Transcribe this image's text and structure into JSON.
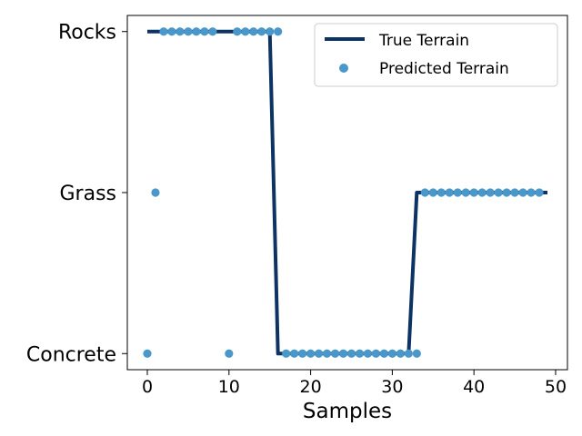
{
  "chart_data": {
    "type": "line",
    "title": "",
    "xlabel": "Samples",
    "ylabel": "",
    "xlim": [
      -2.45,
      51.45
    ],
    "ylim": [
      -0.1,
      2.1
    ],
    "x_ticks": [
      0,
      10,
      20,
      30,
      40,
      50
    ],
    "y_categories": [
      "Concrete",
      "Grass",
      "Rocks"
    ],
    "grid": false,
    "legend_position": "top-right",
    "series": [
      {
        "name": "True Terrain",
        "kind": "line",
        "color": "#0d3264",
        "x": [
          0,
          1,
          2,
          3,
          4,
          5,
          6,
          7,
          8,
          9,
          10,
          11,
          12,
          13,
          14,
          15,
          16,
          17,
          18,
          19,
          20,
          21,
          22,
          23,
          24,
          25,
          26,
          27,
          28,
          29,
          30,
          31,
          32,
          33,
          34,
          35,
          36,
          37,
          38,
          39,
          40,
          41,
          42,
          43,
          44,
          45,
          46,
          47,
          48,
          49
        ],
        "y": [
          2,
          2,
          2,
          2,
          2,
          2,
          2,
          2,
          2,
          2,
          2,
          2,
          2,
          2,
          2,
          2,
          0,
          0,
          0,
          0,
          0,
          0,
          0,
          0,
          0,
          0,
          0,
          0,
          0,
          0,
          0,
          0,
          0,
          1,
          1,
          1,
          1,
          1,
          1,
          1,
          1,
          1,
          1,
          1,
          1,
          1,
          1,
          1,
          1,
          1
        ]
      },
      {
        "name": "Predicted Terrain",
        "kind": "scatter",
        "color": "#4a98c9",
        "x": [
          0,
          1,
          2,
          3,
          4,
          5,
          6,
          7,
          8,
          10,
          11,
          12,
          13,
          14,
          15,
          16,
          17,
          18,
          19,
          20,
          21,
          22,
          23,
          24,
          25,
          26,
          27,
          28,
          29,
          30,
          31,
          32,
          33,
          34,
          35,
          36,
          37,
          38,
          39,
          40,
          41,
          42,
          43,
          44,
          45,
          46,
          47,
          48
        ],
        "y": [
          0,
          1,
          2,
          2,
          2,
          2,
          2,
          2,
          2,
          0,
          2,
          2,
          2,
          2,
          2,
          2,
          0,
          0,
          0,
          0,
          0,
          0,
          0,
          0,
          0,
          0,
          0,
          0,
          0,
          0,
          0,
          0,
          0,
          1,
          1,
          1,
          1,
          1,
          1,
          1,
          1,
          1,
          1,
          1,
          1,
          1,
          1,
          1
        ]
      }
    ]
  }
}
